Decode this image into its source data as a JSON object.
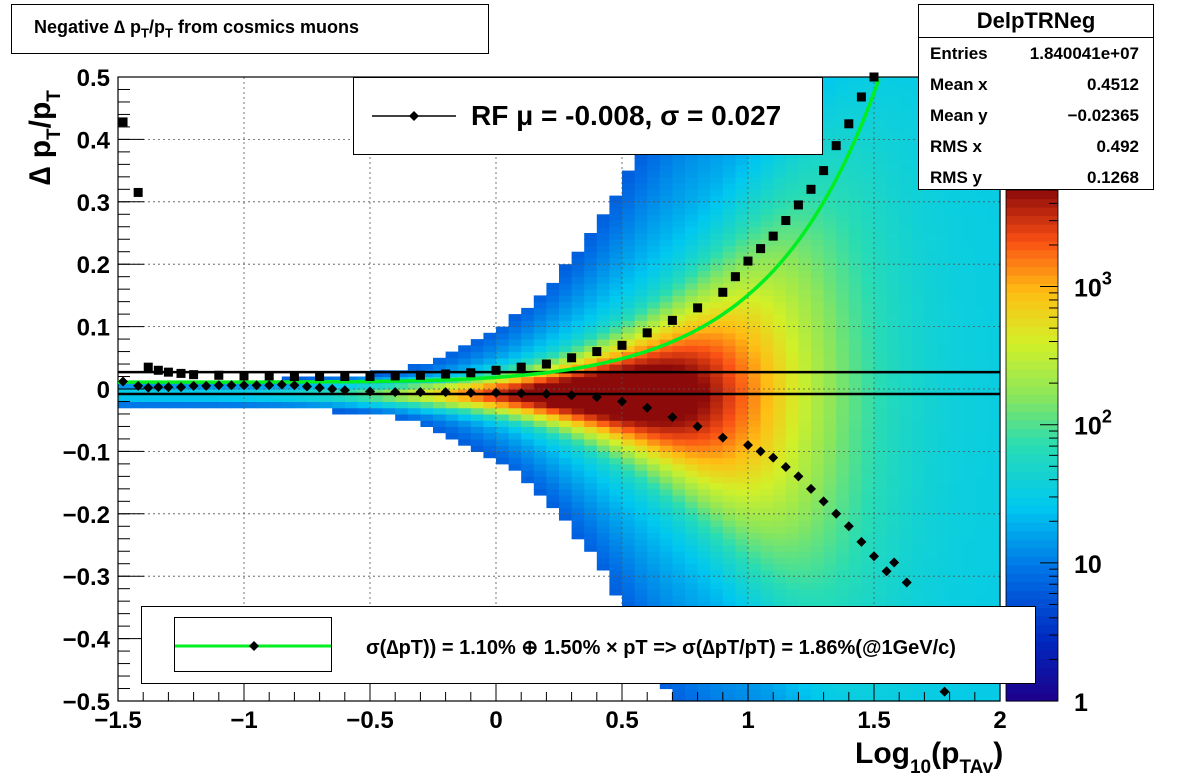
{
  "title": "Negative ∆ p_T/p_T from cosmics muons",
  "stats_box": {
    "name": "DelpTRNeg",
    "rows": [
      {
        "label": "Entries",
        "value": "1.840041e+07"
      },
      {
        "label": "Mean x",
        "value": "0.4512"
      },
      {
        "label": "Mean y",
        "value": "−0.02365"
      },
      {
        "label": "RMS x",
        "value": "0.492"
      },
      {
        "label": "RMS y",
        "value": "0.1268"
      }
    ]
  },
  "legend_top": {
    "text": "RF μ = -0.008, σ =   0.027"
  },
  "legend_bottom": {
    "text": "σ(∆pT)) =  1.10% ⊕  1.50% × pT => σ(∆pT/pT) =  1.86%(@1GeV/c)"
  },
  "colors": {
    "fit_line": "#00ee22",
    "markers": "#000000"
  },
  "chart_data": {
    "type": "heatmap",
    "xlabel": "Log10(pTAv)",
    "ylabel": "∆ pT/pT",
    "xlim": [
      -1.5,
      2
    ],
    "ylim": [
      -0.5,
      0.5
    ],
    "x_ticks": [
      "−1.5",
      "−1",
      "−0.5",
      "0",
      "0.5",
      "1",
      "1.5",
      "2"
    ],
    "y_ticks": [
      "−0.5",
      "−0.4",
      "−0.3",
      "−0.2",
      "−0.1",
      "0",
      "0.1",
      "0.2",
      "0.3",
      "0.4",
      "0.5"
    ],
    "colorbar": {
      "scale": "log",
      "range": [
        1,
        5000
      ],
      "tick_labels": [
        "1",
        "10",
        "10^2",
        "10^3"
      ]
    },
    "grid": true,
    "series": [
      {
        "name": "RF",
        "marker": "diamond",
        "x": [
          -1.48,
          -1.42,
          -1.38,
          -1.34,
          -1.3,
          -1.25,
          -1.2,
          -1.15,
          -1.1,
          -1.05,
          -1.0,
          -0.95,
          -0.9,
          -0.85,
          -0.8,
          -0.75,
          -0.7,
          -0.65,
          -0.6,
          -0.5,
          -0.4,
          -0.3,
          -0.2,
          -0.1,
          0.0,
          0.1,
          0.2,
          0.3,
          0.4,
          0.5,
          0.6,
          0.7,
          0.8,
          0.9,
          1.0,
          1.05,
          1.1,
          1.15,
          1.2,
          1.25,
          1.3,
          1.35,
          1.4,
          1.45,
          1.5,
          1.55,
          1.58,
          1.63,
          1.78
        ],
        "y": [
          0.012,
          0.005,
          0.002,
          0.003,
          0.003,
          0.003,
          0.005,
          0.005,
          0.006,
          0.006,
          0.006,
          0.006,
          0.006,
          0.007,
          0.006,
          0.004,
          0.002,
          0.0,
          -0.002,
          -0.004,
          -0.005,
          -0.005,
          -0.005,
          -0.006,
          -0.006,
          -0.007,
          -0.008,
          -0.01,
          -0.013,
          -0.02,
          -0.03,
          -0.045,
          -0.06,
          -0.078,
          -0.09,
          -0.1,
          -0.11,
          -0.125,
          -0.14,
          -0.16,
          -0.18,
          -0.2,
          -0.22,
          -0.245,
          -0.268,
          -0.292,
          -0.278,
          -0.31,
          -0.485
        ]
      },
      {
        "name": "",
        "marker": "square",
        "x": [
          -1.48,
          -1.42,
          -1.38,
          -1.34,
          -1.3,
          -1.25,
          -1.2,
          -1.1,
          -1.0,
          -0.9,
          -0.8,
          -0.7,
          -0.6,
          -0.5,
          -0.4,
          -0.3,
          -0.2,
          -0.1,
          0.0,
          0.1,
          0.2,
          0.3,
          0.4,
          0.5,
          0.6,
          0.7,
          0.8,
          0.9,
          0.95,
          1.0,
          1.05,
          1.1,
          1.15,
          1.2,
          1.25,
          1.3,
          1.35,
          1.4,
          1.45,
          1.5
        ],
        "y": [
          0.428,
          0.315,
          0.035,
          0.03,
          0.027,
          0.025,
          0.023,
          0.022,
          0.021,
          0.021,
          0.02,
          0.02,
          0.02,
          0.02,
          0.021,
          0.022,
          0.024,
          0.026,
          0.03,
          0.035,
          0.04,
          0.05,
          0.06,
          0.07,
          0.09,
          0.11,
          0.13,
          0.155,
          0.18,
          0.205,
          0.225,
          0.245,
          0.27,
          0.295,
          0.32,
          0.35,
          0.39,
          0.425,
          0.468,
          0.5
        ]
      }
    ],
    "fit_line": {
      "sigma_const_percent": 1.1,
      "sigma_slope_percent": 1.5
    },
    "horizontal_lines": [
      0.027,
      -0.008
    ]
  }
}
